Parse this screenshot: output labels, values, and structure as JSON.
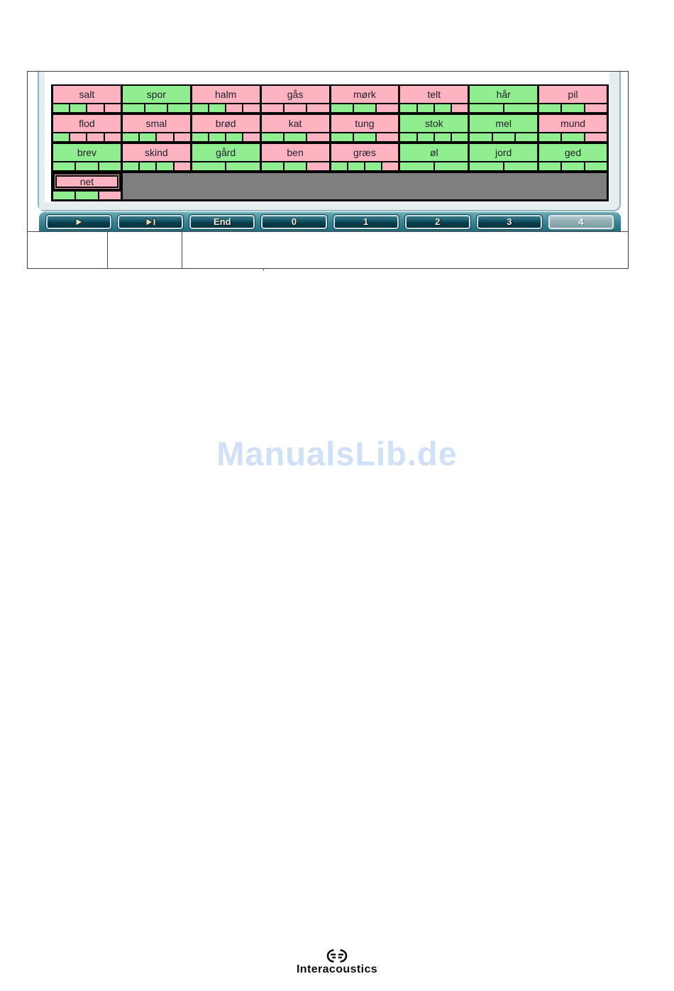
{
  "watermark": {
    "text": "ManualsLib.de",
    "color": "#cfe0f7"
  },
  "screenshot": {
    "description": "speech-audiometry-word-scoring-screen",
    "grid": {
      "colors": {
        "correct": "#90ee90",
        "incorrect": "#ffb2bf",
        "empty": "#7f7f7f",
        "border": "#000000"
      },
      "rows": [
        {
          "cells": [
            {
              "word": "salt",
              "state": "incorrect",
              "phonemes": [
                "correct",
                "correct",
                "incorrect",
                "incorrect"
              ]
            },
            {
              "word": "spor",
              "state": "correct",
              "phonemes": [
                "correct",
                "correct",
                "correct"
              ]
            },
            {
              "word": "halm",
              "state": "incorrect",
              "phonemes": [
                "correct",
                "correct",
                "incorrect",
                "incorrect"
              ]
            },
            {
              "word": "gås",
              "state": "incorrect",
              "phonemes": [
                "incorrect",
                "incorrect",
                "incorrect"
              ]
            },
            {
              "word": "mørk",
              "state": "incorrect",
              "phonemes": [
                "correct",
                "correct",
                "incorrect"
              ]
            },
            {
              "word": "telt",
              "state": "incorrect",
              "phonemes": [
                "correct",
                "correct",
                "correct",
                "incorrect"
              ]
            },
            {
              "word": "hår",
              "state": "correct",
              "phonemes": [
                "correct",
                "correct"
              ]
            },
            {
              "word": "pil",
              "state": "incorrect",
              "phonemes": [
                "correct",
                "correct",
                "incorrect"
              ]
            }
          ]
        },
        {
          "cells": [
            {
              "word": "flod",
              "state": "incorrect",
              "phonemes": [
                "correct",
                "incorrect",
                "incorrect",
                "incorrect"
              ]
            },
            {
              "word": "smal",
              "state": "incorrect",
              "phonemes": [
                "correct",
                "correct",
                "incorrect",
                "incorrect"
              ]
            },
            {
              "word": "brød",
              "state": "incorrect",
              "phonemes": [
                "correct",
                "correct",
                "correct",
                "incorrect"
              ]
            },
            {
              "word": "kat",
              "state": "incorrect",
              "phonemes": [
                "correct",
                "correct",
                "incorrect"
              ]
            },
            {
              "word": "tung",
              "state": "incorrect",
              "phonemes": [
                "correct",
                "correct",
                "incorrect"
              ]
            },
            {
              "word": "stok",
              "state": "correct",
              "phonemes": [
                "correct",
                "correct",
                "correct",
                "correct"
              ]
            },
            {
              "word": "mel",
              "state": "correct",
              "phonemes": [
                "correct",
                "correct",
                "correct"
              ]
            },
            {
              "word": "mund",
              "state": "incorrect",
              "phonemes": [
                "correct",
                "correct",
                "incorrect"
              ]
            }
          ]
        },
        {
          "cells": [
            {
              "word": "brev",
              "state": "correct",
              "phonemes": [
                "correct",
                "correct",
                "correct"
              ]
            },
            {
              "word": "skind",
              "state": "incorrect",
              "phonemes": [
                "correct",
                "correct",
                "correct",
                "incorrect"
              ]
            },
            {
              "word": "gård",
              "state": "correct",
              "phonemes": [
                "correct",
                "correct"
              ]
            },
            {
              "word": "ben",
              "state": "incorrect",
              "phonemes": [
                "correct",
                "correct",
                "incorrect"
              ]
            },
            {
              "word": "græs",
              "state": "incorrect",
              "phonemes": [
                "correct",
                "correct",
                "correct",
                "incorrect"
              ]
            },
            {
              "word": "øl",
              "state": "correct",
              "phonemes": [
                "correct",
                "correct"
              ]
            },
            {
              "word": "jord",
              "state": "correct",
              "phonemes": [
                "correct",
                "correct"
              ]
            },
            {
              "word": "ged",
              "state": "correct",
              "phonemes": [
                "correct",
                "correct",
                "correct"
              ]
            }
          ]
        },
        {
          "filler": true,
          "cells": [
            {
              "word": "net",
              "state": "incorrect",
              "active": true,
              "phonemes": [
                "correct",
                "correct",
                "incorrect"
              ]
            }
          ]
        }
      ]
    },
    "toolbar": {
      "buttons": [
        {
          "id": "play",
          "icon": "play-icon",
          "label": ""
        },
        {
          "id": "skip",
          "icon": "skip-forward-icon",
          "label": ""
        },
        {
          "id": "end",
          "label": "End"
        },
        {
          "id": "score-0",
          "label": "0"
        },
        {
          "id": "score-1",
          "label": "1"
        },
        {
          "id": "score-2",
          "label": "2"
        },
        {
          "id": "score-3",
          "label": "3"
        },
        {
          "id": "score-4",
          "label": "4",
          "selected": true
        }
      ]
    }
  },
  "footer_table": {
    "cell_count": 3,
    "cell_texts": [
      "",
      "",
      ""
    ]
  },
  "logo": {
    "text": "Interacoustics"
  }
}
